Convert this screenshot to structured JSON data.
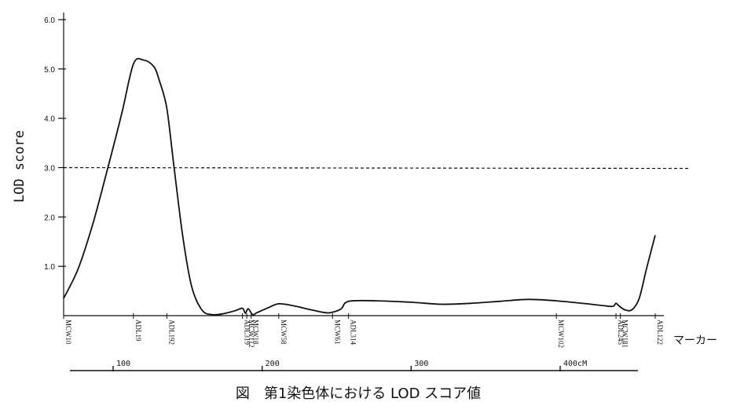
{
  "chart_data": {
    "type": "line",
    "title": "図　第1染色体における LOD スコア値",
    "xlabel": "マーカー",
    "ylabel": "LOD  score",
    "ylim": [
      0,
      6.0
    ],
    "y_ticks": [
      "6.0",
      "5.0",
      "4.0",
      "3.0",
      "2.0",
      "1.0"
    ],
    "threshold": 3.0,
    "grid": false,
    "markers": [
      {
        "name": "MCW10",
        "pos": 0
      },
      {
        "name": "ADL19",
        "pos": 48
      },
      {
        "name": "ADL192",
        "pos": 71
      },
      {
        "name": "ADL319",
        "pos": 123
      },
      {
        "name": "MCW112",
        "pos": 126
      },
      {
        "name": "MCW18",
        "pos": 129
      },
      {
        "name": "MCW58",
        "pos": 148
      },
      {
        "name": "MCW61",
        "pos": 185
      },
      {
        "name": "ADL314",
        "pos": 196
      },
      {
        "name": "MCW102",
        "pos": 339
      },
      {
        "name": "ADL245",
        "pos": 380
      },
      {
        "name": "MCW181",
        "pos": 383
      },
      {
        "name": "ADL122",
        "pos": 407
      }
    ],
    "scale": {
      "unit": "cM",
      "ticks": [
        {
          "label": "100",
          "value": 100
        },
        {
          "label": "200",
          "value": 200
        },
        {
          "label": "300",
          "value": 300
        },
        {
          "label": "400cM",
          "value": 400
        }
      ]
    },
    "series": [
      {
        "points": [
          [
            0,
            0.35
          ],
          [
            10,
            0.95
          ],
          [
            20,
            1.85
          ],
          [
            30,
            2.95
          ],
          [
            40,
            4.1
          ],
          [
            48,
            5.1
          ],
          [
            55,
            5.18
          ],
          [
            62,
            5.05
          ],
          [
            66,
            4.75
          ],
          [
            71,
            4.2
          ],
          [
            76,
            3.0
          ],
          [
            82,
            1.6
          ],
          [
            88,
            0.6
          ],
          [
            95,
            0.12
          ],
          [
            102,
            0.02
          ],
          [
            110,
            0.04
          ],
          [
            118,
            0.1
          ],
          [
            123,
            0.15
          ],
          [
            125,
            0.05
          ],
          [
            127,
            0.14
          ],
          [
            130,
            0.02
          ],
          [
            133,
            0.06
          ],
          [
            140,
            0.15
          ],
          [
            148,
            0.24
          ],
          [
            158,
            0.2
          ],
          [
            170,
            0.12
          ],
          [
            180,
            0.06
          ],
          [
            185,
            0.07
          ],
          [
            191,
            0.14
          ],
          [
            196,
            0.29
          ],
          [
            215,
            0.3
          ],
          [
            240,
            0.27
          ],
          [
            260,
            0.23
          ],
          [
            280,
            0.25
          ],
          [
            300,
            0.29
          ],
          [
            320,
            0.33
          ],
          [
            339,
            0.3
          ],
          [
            360,
            0.24
          ],
          [
            372,
            0.2
          ],
          [
            378,
            0.19
          ],
          [
            380,
            0.25
          ],
          [
            382,
            0.2
          ],
          [
            386,
            0.12
          ],
          [
            391,
            0.12
          ],
          [
            396,
            0.35
          ],
          [
            401,
            0.95
          ],
          [
            407,
            1.63
          ]
        ]
      }
    ]
  }
}
